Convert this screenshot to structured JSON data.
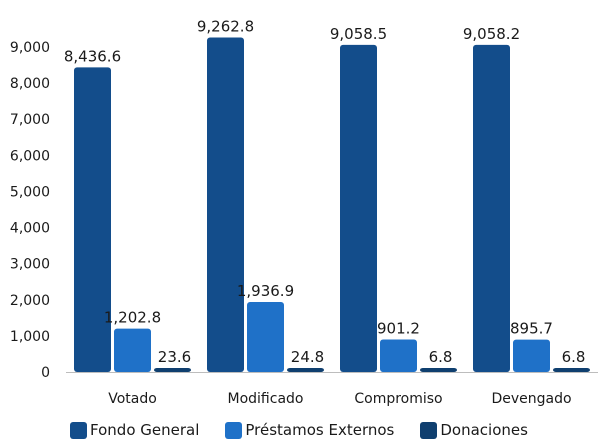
{
  "chart_data": {
    "type": "bar",
    "title": "",
    "xlabel": "",
    "ylabel": "",
    "categories": [
      "Votado",
      "Modificado",
      "Compromiso",
      "Devengado"
    ],
    "series": [
      {
        "name": "Fondo General",
        "color": "#134d8b",
        "values": [
          8436.6,
          9262.8,
          9058.5,
          9058.2
        ],
        "labels": [
          "8,436.6",
          "9,262.8",
          "9,058.5",
          "9,058.2"
        ]
      },
      {
        "name": "Préstamos Externos",
        "color": "#1f71c8",
        "values": [
          1202.8,
          1936.9,
          901.2,
          895.7
        ],
        "labels": [
          "1,202.8",
          "1,936.9",
          "901.2",
          "895.7"
        ]
      },
      {
        "name": "Donaciones",
        "color": "#0f3f6f",
        "values": [
          23.6,
          24.8,
          6.8,
          6.8
        ],
        "labels": [
          "23.6",
          "24.8",
          "6.8",
          "6.8"
        ]
      }
    ],
    "ylim": [
      0,
      9000
    ],
    "yticks": [
      0,
      1000,
      2000,
      3000,
      4000,
      5000,
      6000,
      7000,
      8000,
      9000
    ],
    "ytick_labels": [
      "0",
      "1,000",
      "2,000",
      "3,000",
      "4,000",
      "5,000",
      "6,000",
      "7,000",
      "8,000",
      "9,000"
    ],
    "grid": false,
    "legend_position": "bottom"
  }
}
